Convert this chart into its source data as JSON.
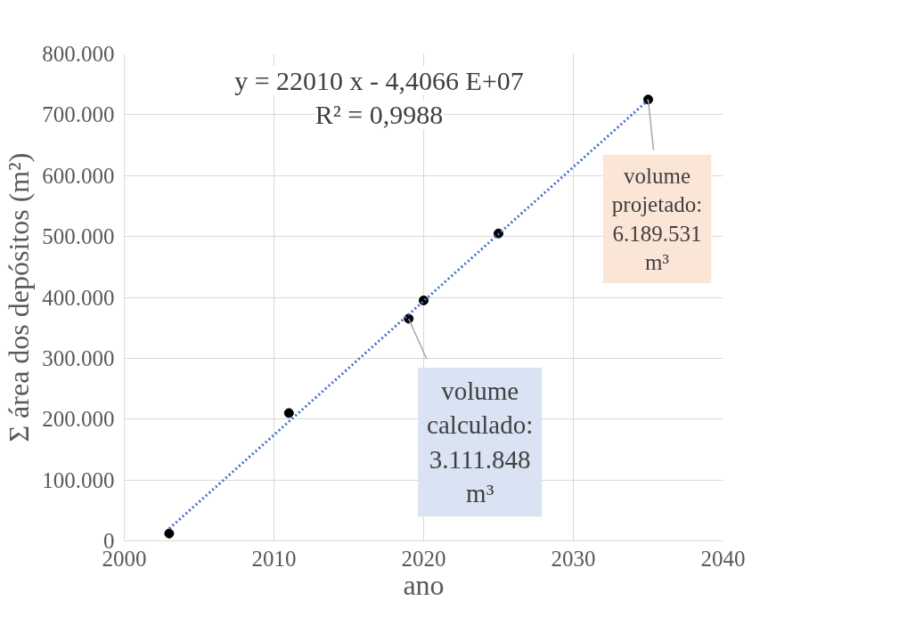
{
  "chart_data": {
    "type": "scatter",
    "xlabel": "ano",
    "ylabel": "Σ área dos depósitos (m²)",
    "annotations": [
      "y = 22010 x - 4,4066 E+07",
      "R² = 0,9988",
      {
        "text": "volume calculado: 3.111.848 m³",
        "x": 2019,
        "y": 365000
      },
      {
        "text": "volume projetado: 6.189.531 m³",
        "x": 2035,
        "y": 725000
      }
    ],
    "series": [
      {
        "color": "#000000",
        "x": [
          2003,
          2011,
          2019,
          2020,
          2025,
          2035
        ],
        "values": [
          12000,
          210000,
          365000,
          395000,
          505000,
          725000
        ]
      },
      {
        "type": "line",
        "color": "#4472c4",
        "line_style": "dotted",
        "marker": "none",
        "x": [
          2003,
          2035
        ],
        "values": [
          20000,
          724000
        ]
      }
    ],
    "marker": "circle",
    "grid": true,
    "xlim": [
      2000,
      2040
    ],
    "xticks": [
      2000,
      2010,
      2020,
      2030,
      2040
    ],
    "ylim": [
      0,
      800000
    ],
    "yticks": [
      0,
      {
        "value": 100000,
        "label": "100.000"
      },
      {
        "value": 200000,
        "label": "200.000"
      },
      {
        "value": 300000,
        "label": "300.000"
      },
      {
        "value": 400000,
        "label": "400.000"
      },
      {
        "value": 500000,
        "label": "500.000"
      },
      {
        "value": 600000,
        "label": "600.000"
      },
      {
        "value": 700000,
        "label": "700.000"
      },
      {
        "value": 800000,
        "label": "800.000"
      }
    ]
  }
}
